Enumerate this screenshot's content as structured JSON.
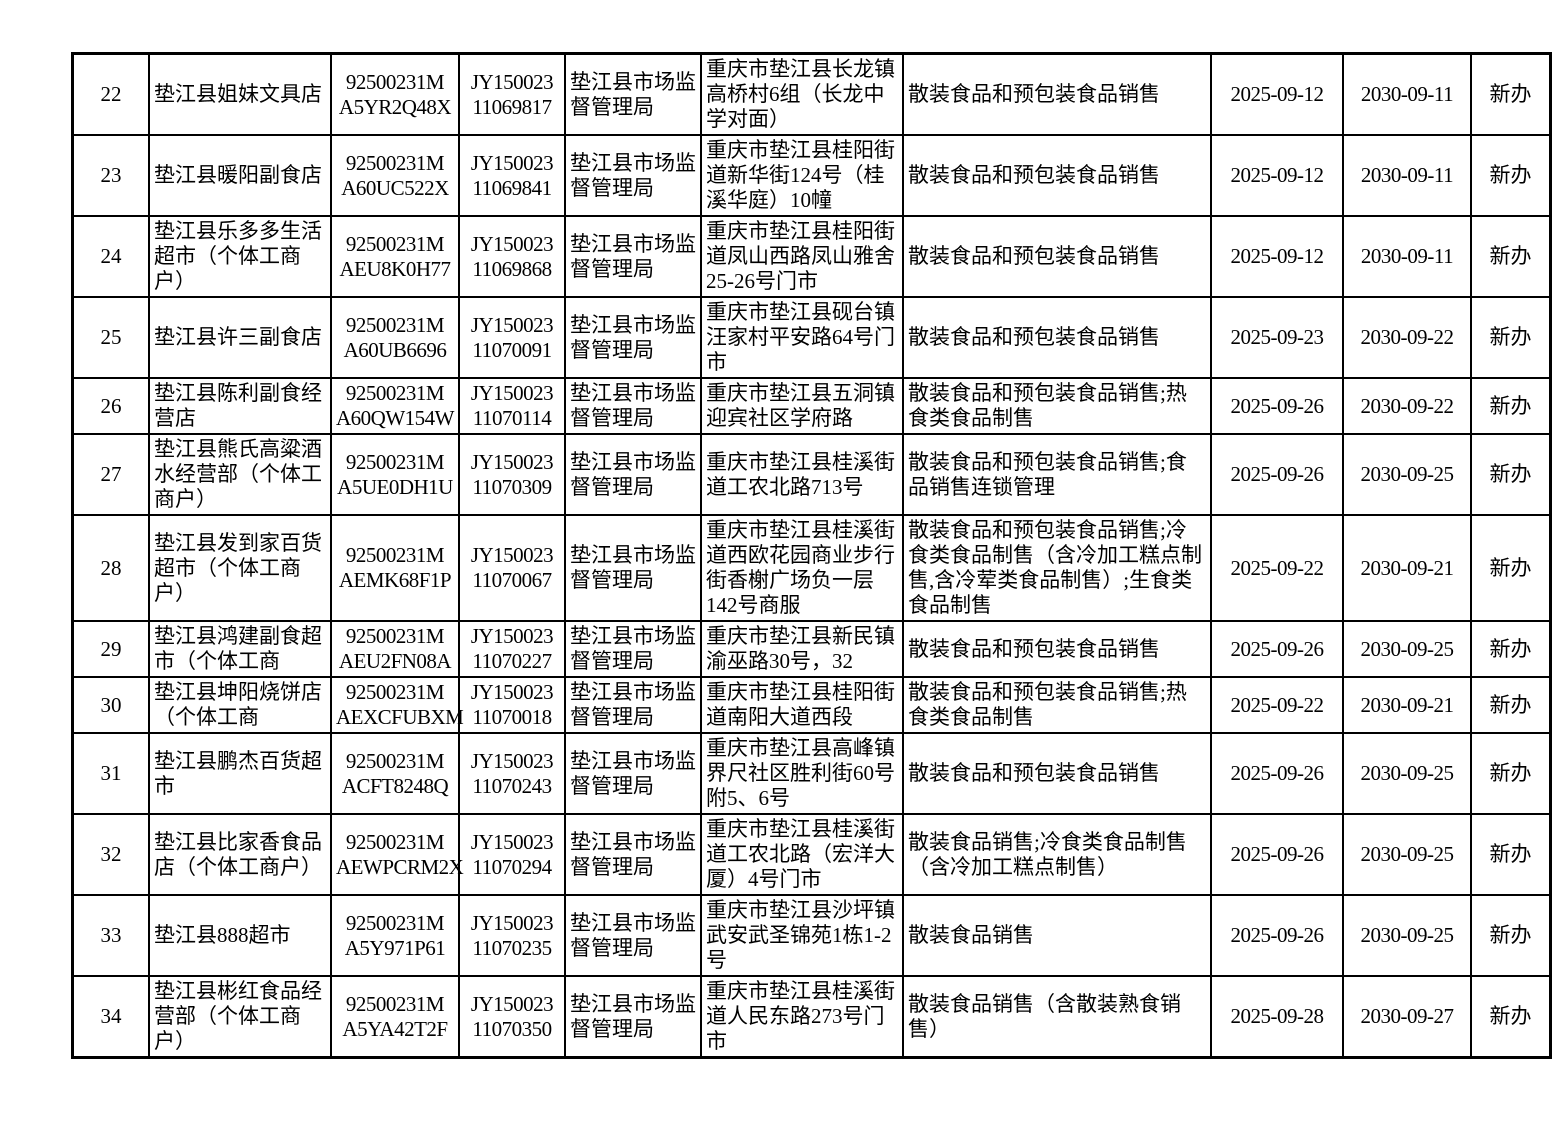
{
  "page": {
    "background_color": "#ffffff",
    "text_color": "#000000",
    "border_color": "#000000"
  },
  "table": {
    "rows": [
      {
        "no": "22",
        "name": "垫江县姐妹文具店",
        "credit_code": "92500231MA5YR2Q48X",
        "license_no": "JY15002311069817",
        "authority": "垫江县市场监督管理局",
        "address": "重庆市垫江县长龙镇高桥村6组（长龙中学对面）",
        "scope": "散装食品和预包装食品销售",
        "issue_date": "2025-09-12",
        "expiry_date": "2030-09-11",
        "type": "新办"
      },
      {
        "no": "23",
        "name": "垫江县暖阳副食店",
        "credit_code": "92500231MA60UC522X",
        "license_no": "JY15002311069841",
        "authority": "垫江县市场监督管理局",
        "address": "重庆市垫江县桂阳街道新华街124号（桂溪华庭）10幢",
        "scope": "散装食品和预包装食品销售",
        "issue_date": "2025-09-12",
        "expiry_date": "2030-09-11",
        "type": "新办"
      },
      {
        "no": "24",
        "name": "垫江县乐多多生活超市（个体工商户）",
        "credit_code": "92500231MAEU8K0H77",
        "license_no": "JY15002311069868",
        "authority": "垫江县市场监督管理局",
        "address": "重庆市垫江县桂阳街道凤山西路凤山雅舍25-26号门市",
        "scope": "散装食品和预包装食品销售",
        "issue_date": "2025-09-12",
        "expiry_date": "2030-09-11",
        "type": "新办"
      },
      {
        "no": "25",
        "name": "垫江县许三副食店",
        "credit_code": "92500231MA60UB6696",
        "license_no": "JY15002311070091",
        "authority": "垫江县市场监督管理局",
        "address": "重庆市垫江县砚台镇汪家村平安路64号门市",
        "scope": "散装食品和预包装食品销售",
        "issue_date": "2025-09-23",
        "expiry_date": "2030-09-22",
        "type": "新办"
      },
      {
        "no": "26",
        "name": "垫江县陈利副食经营店",
        "credit_code": "92500231MA60QW154W",
        "license_no": "JY15002311070114",
        "authority": "垫江县市场监督管理局",
        "address": "重庆市垫江县五洞镇迎宾社区学府路",
        "scope": "散装食品和预包装食品销售;热食类食品制售",
        "issue_date": "2025-09-26",
        "expiry_date": "2030-09-22",
        "type": "新办"
      },
      {
        "no": "27",
        "name": "垫江县熊氏高粱酒水经营部（个体工商户）",
        "credit_code": "92500231MA5UE0DH1U",
        "license_no": "JY15002311070309",
        "authority": "垫江县市场监督管理局",
        "address": "重庆市垫江县桂溪街道工农北路713号",
        "scope": "散装食品和预包装食品销售;食品销售连锁管理",
        "issue_date": "2025-09-26",
        "expiry_date": "2030-09-25",
        "type": "新办"
      },
      {
        "no": "28",
        "name": "垫江县发到家百货超市（个体工商户）",
        "credit_code": "92500231MAEMK68F1P",
        "license_no": "JY15002311070067",
        "authority": "垫江县市场监督管理局",
        "address": "重庆市垫江县桂溪街道西欧花园商业步行街香榭广场负一层142号商服",
        "scope": "散装食品和预包装食品销售;冷食类食品制售（含冷加工糕点制售,含冷荤类食品制售）;生食类食品制售",
        "issue_date": "2025-09-22",
        "expiry_date": "2030-09-21",
        "type": "新办"
      },
      {
        "no": "29",
        "name": "垫江县鸿建副食超市（个体工商",
        "credit_code": "92500231MAEU2FN08A",
        "license_no": "JY15002311070227",
        "authority": "垫江县市场监督管理局",
        "address": "重庆市垫江县新民镇渝巫路30号，32",
        "scope": "散装食品和预包装食品销售",
        "issue_date": "2025-09-26",
        "expiry_date": "2030-09-25",
        "type": "新办"
      },
      {
        "no": "30",
        "name": "垫江县坤阳烧饼店（个体工商",
        "credit_code": "92500231MAEXCFUBXM",
        "license_no": "JY15002311070018",
        "authority": "垫江县市场监督管理局",
        "address": "重庆市垫江县桂阳街道南阳大道西段",
        "scope": "散装食品和预包装食品销售;热食类食品制售",
        "issue_date": "2025-09-22",
        "expiry_date": "2030-09-21",
        "type": "新办"
      },
      {
        "no": "31",
        "name": "垫江县鹏杰百货超市",
        "credit_code": "92500231MACFT8248Q",
        "license_no": "JY15002311070243",
        "authority": "垫江县市场监督管理局",
        "address": "重庆市垫江县高峰镇界尺社区胜利街60号附5、6号",
        "scope": "散装食品和预包装食品销售",
        "issue_date": "2025-09-26",
        "expiry_date": "2030-09-25",
        "type": "新办"
      },
      {
        "no": "32",
        "name": "垫江县比家香食品店（个体工商户）",
        "credit_code": "92500231MAEWPCRM2X",
        "license_no": "JY15002311070294",
        "authority": "垫江县市场监督管理局",
        "address": "重庆市垫江县桂溪街道工农北路（宏洋大厦）4号门市",
        "scope": "散装食品销售;冷食类食品制售（含冷加工糕点制售）",
        "issue_date": "2025-09-26",
        "expiry_date": "2030-09-25",
        "type": "新办"
      },
      {
        "no": "33",
        "name": "垫江县888超市",
        "credit_code": "92500231MA5Y971P61",
        "license_no": "JY15002311070235",
        "authority": "垫江县市场监督管理局",
        "address": "重庆市垫江县沙坪镇武安武圣锦苑1栋1-2号",
        "scope": "散装食品销售",
        "issue_date": "2025-09-26",
        "expiry_date": "2030-09-25",
        "type": "新办"
      },
      {
        "no": "34",
        "name": "垫江县彬红食品经营部（个体工商户）",
        "credit_code": "92500231MA5YA42T2F",
        "license_no": "JY15002311070350",
        "authority": "垫江县市场监督管理局",
        "address": "重庆市垫江县桂溪街道人民东路273号门市",
        "scope": "散装食品销售（含散装熟食销售）",
        "issue_date": "2025-09-28",
        "expiry_date": "2030-09-27",
        "type": "新办"
      }
    ]
  }
}
